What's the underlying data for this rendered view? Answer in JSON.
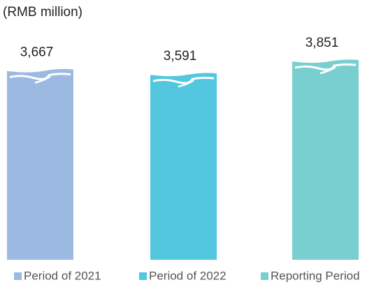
{
  "chart_data": {
    "type": "bar",
    "subtitle": "(RMB million)",
    "categories": [
      null
    ],
    "series": [
      {
        "name": "Period of 2021",
        "color": "#9bb9e1",
        "values": [
          3667
        ],
        "value_labels": [
          "3,667"
        ]
      },
      {
        "name": "Period of 2022",
        "color": "#52c7df",
        "values": [
          3591
        ],
        "value_labels": [
          "3,591"
        ]
      },
      {
        "name": "Reporting Period",
        "color": "#79cfcf",
        "values": [
          3851
        ],
        "value_labels": [
          "3,851"
        ]
      }
    ]
  }
}
